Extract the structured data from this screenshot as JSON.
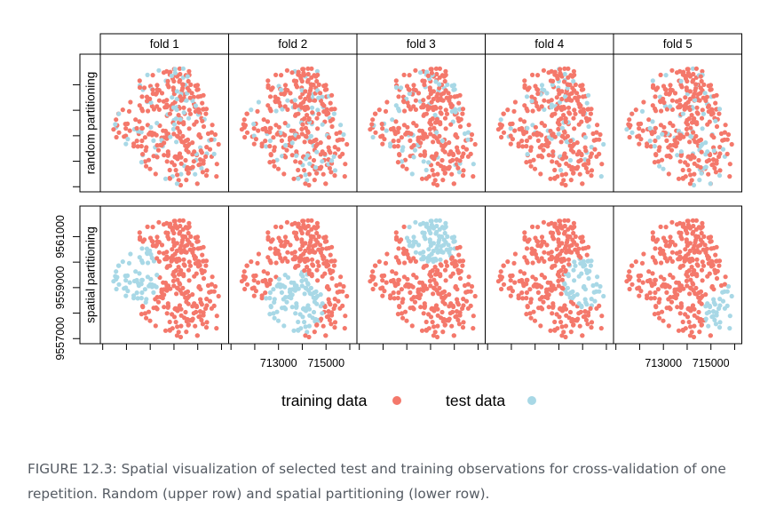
{
  "caption": "FIGURE 12.3: Spatial visualization of selected test and training observations for cross-validation of one repetition. Random (upper row) and spatial partitioning (lower row).",
  "chart_data": {
    "type": "scatter",
    "columns": [
      "fold 1",
      "fold 2",
      "fold 3",
      "fold 4",
      "fold 5"
    ],
    "rows": [
      "random partitioning",
      "spatial partitioning"
    ],
    "legend": [
      {
        "label": "training data",
        "color": "#f4786b"
      },
      {
        "label": "test data",
        "color": "#a8d8e6"
      }
    ],
    "legend_position": "bottom",
    "grid": false,
    "xlim": [
      710900,
      716300
    ],
    "ylim": [
      9556800,
      9562200
    ],
    "x_ticks": [
      711000,
      712000,
      713000,
      714000,
      715000,
      716000
    ],
    "x_tick_labels": [
      "713000",
      "715000"
    ],
    "x_tick_label_values": [
      713000,
      715000
    ],
    "x_labeled_panels": [
      1,
      4
    ],
    "y_ticks": [
      9557000,
      9558000,
      9559000,
      9560000,
      9561000
    ],
    "y_tick_labels": [
      "9557000",
      "9559000",
      "9561000"
    ],
    "y_tick_label_values": [
      9557000,
      9559000,
      9561000
    ],
    "y_labeled_row": 1,
    "spatial_test_regions": [
      {
        "fold": "fold 1",
        "center": [
          712100,
          9559500
        ],
        "radius": 1300
      },
      {
        "fold": "fold 2",
        "center": [
          713700,
          9558400
        ],
        "radius": 1250
      },
      {
        "fold": "fold 3",
        "center": [
          714100,
          9561100
        ],
        "radius": 1150
      },
      {
        "fold": "fold 4",
        "center": [
          715200,
          9559200
        ],
        "radius": 1000
      },
      {
        "fold": "fold 5",
        "center": [
          715800,
          9558000
        ],
        "radius": 1100
      }
    ]
  }
}
